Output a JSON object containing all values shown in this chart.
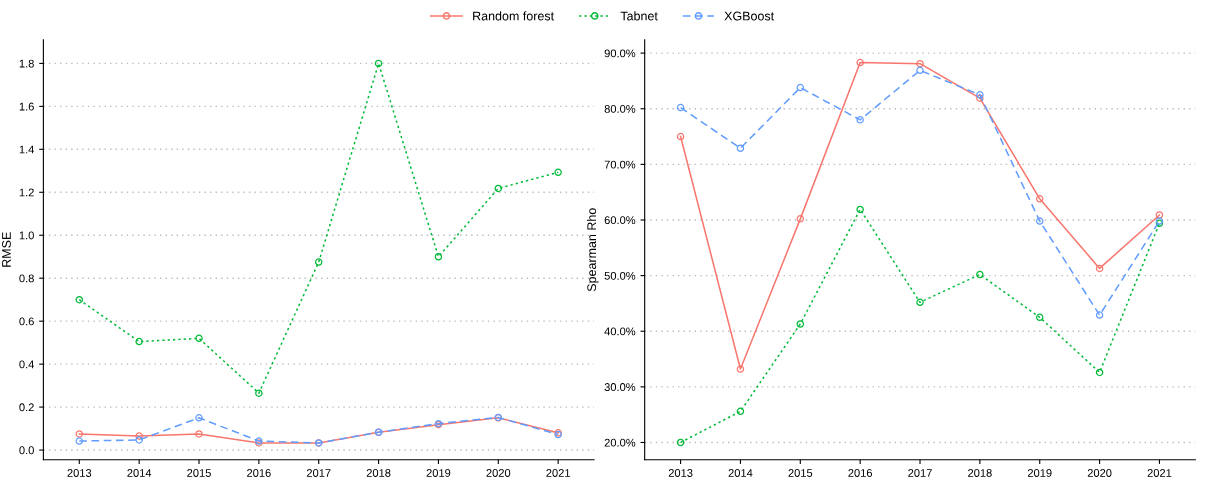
{
  "chart_data": [
    {
      "type": "line",
      "ylabel": "RMSE",
      "categories": [
        "2013",
        "2014",
        "2015",
        "2016",
        "2017",
        "2018",
        "2019",
        "2020",
        "2021"
      ],
      "series": [
        {
          "name": "Random forest",
          "color": "#f8766d",
          "line_style": "solid",
          "values": [
            0.075,
            0.065,
            0.075,
            0.033,
            0.033,
            0.083,
            0.118,
            0.15,
            0.08
          ]
        },
        {
          "name": "Tabnet",
          "color": "#00ba38",
          "line_style": "dotted",
          "values": [
            0.7,
            0.505,
            0.52,
            0.265,
            0.875,
            1.8,
            0.9,
            1.218,
            1.293
          ]
        },
        {
          "name": "XGBoost",
          "color": "#619cff",
          "line_style": "dashed",
          "values": [
            0.042,
            0.047,
            0.15,
            0.042,
            0.033,
            0.083,
            0.123,
            0.152,
            0.072
          ]
        }
      ],
      "ylim": [
        -0.045,
        1.91
      ],
      "yticks": [
        {
          "value": 0,
          "label": "0.0"
        },
        0.2,
        0.4,
        0.6,
        0.8,
        {
          "value": 1,
          "label": "1.0"
        },
        1.2,
        1.4,
        1.6,
        1.8
      ],
      "grid": "y",
      "legend": "top",
      "marker": "circle"
    },
    {
      "type": "line",
      "ylabel": "Spearman Rho",
      "categories": [
        "2013",
        "2014",
        "2015",
        "2016",
        "2017",
        "2018",
        "2019",
        "2020",
        "2021"
      ],
      "series": [
        {
          "name": "Random forest",
          "color": "#f8766d",
          "line_style": "solid",
          "values": [
            75.0,
            33.2,
            60.2,
            88.3,
            88.1,
            81.9,
            63.8,
            51.3,
            60.9
          ]
        },
        {
          "name": "Tabnet",
          "color": "#00ba38",
          "line_style": "dotted",
          "values": [
            20.0,
            25.6,
            41.3,
            61.9,
            45.2,
            50.2,
            42.5,
            32.6,
            59.4
          ]
        },
        {
          "name": "XGBoost",
          "color": "#619cff",
          "line_style": "dashed",
          "values": [
            80.2,
            72.9,
            83.8,
            78.0,
            86.9,
            82.5,
            59.8,
            42.9,
            59.8
          ]
        }
      ],
      "ylim": [
        16.9,
        92.4
      ],
      "yticks": [
        {
          "value": 20,
          "label": "20.0%"
        },
        {
          "value": 30,
          "label": "30.0%"
        },
        {
          "value": 40,
          "label": "40.0%"
        },
        {
          "value": 50,
          "label": "50.0%"
        },
        {
          "value": 60,
          "label": "60.0%"
        },
        {
          "value": 70,
          "label": "70.0%"
        },
        {
          "value": 80,
          "label": "80.0%"
        },
        {
          "value": 90,
          "label": "90.0%"
        }
      ],
      "grid": "y",
      "marker": "circle"
    }
  ]
}
